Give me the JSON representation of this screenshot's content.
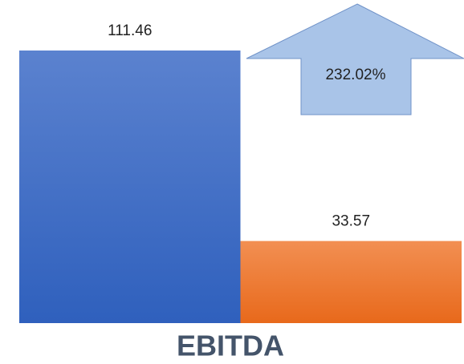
{
  "chart_data": {
    "type": "bar",
    "x_label": "EBITDA",
    "categories": [
      null,
      null
    ],
    "values": [
      111.46,
      33.57
    ],
    "colors": [
      "#4472c4",
      "#ed7d31"
    ],
    "annotation": {
      "text": "232.02%",
      "color": "#a9c4e8"
    }
  }
}
